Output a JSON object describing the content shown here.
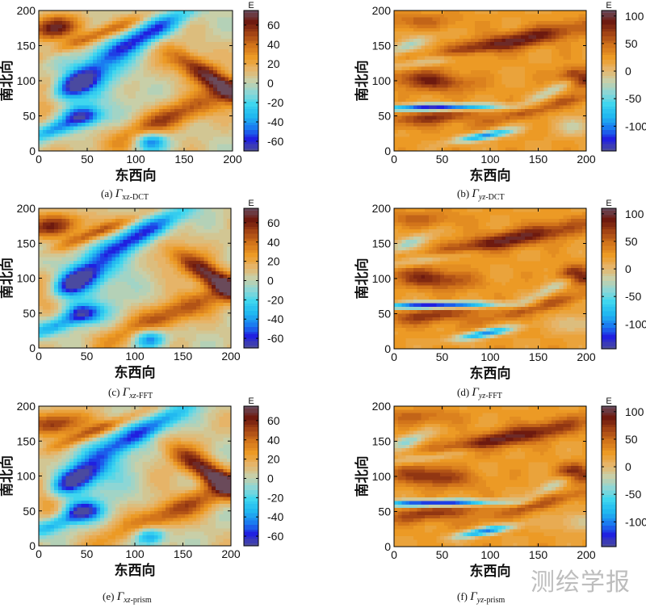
{
  "figure": {
    "watermark": "测绘学报"
  },
  "chart_data": [
    {
      "id": "a",
      "type": "heatmap",
      "field": "xz",
      "caption": {
        "prefix": "(a) ",
        "symbol": "Γ",
        "sub_lead": "xz",
        "sub_tail": "-DCT",
        "sub_italic": false
      },
      "xlabel": "东西向",
      "ylabel": "南北向",
      "xlim": [
        0,
        200
      ],
      "ylim": [
        0,
        200
      ],
      "xticks": [
        0,
        50,
        100,
        150,
        200
      ],
      "yticks": [
        0,
        50,
        100,
        150,
        200
      ],
      "colorbar": {
        "title": "E",
        "range": [
          -70,
          75
        ],
        "ticks": [
          60,
          40,
          20,
          0,
          -20,
          -40,
          -60
        ]
      }
    },
    {
      "id": "b",
      "type": "heatmap",
      "field": "yz",
      "caption": {
        "prefix": "(b) ",
        "symbol": "Γ",
        "sub_lead": "yz",
        "sub_tail": "-DCT",
        "sub_italic": true
      },
      "xlabel": "东西向",
      "ylabel": "南北向",
      "xlim": [
        0,
        200
      ],
      "ylim": [
        0,
        200
      ],
      "xticks": [
        0,
        50,
        100,
        150,
        200
      ],
      "yticks": [
        0,
        50,
        100,
        150,
        200
      ],
      "colorbar": {
        "title": "E",
        "range": [
          -145,
          110
        ],
        "ticks": [
          100,
          50,
          0,
          -50,
          -100
        ]
      }
    },
    {
      "id": "c",
      "type": "heatmap",
      "field": "xz",
      "caption": {
        "prefix": "(c) ",
        "symbol": "Γ",
        "sub_lead": "xz",
        "sub_tail": "-FFT",
        "sub_italic": true
      },
      "xlabel": "东西向",
      "ylabel": "南北向",
      "xlim": [
        0,
        200
      ],
      "ylim": [
        0,
        200
      ],
      "xticks": [
        0,
        50,
        100,
        150,
        200
      ],
      "yticks": [
        0,
        50,
        100,
        150,
        200
      ],
      "colorbar": {
        "title": "E",
        "range": [
          -70,
          75
        ],
        "ticks": [
          60,
          40,
          20,
          0,
          -20,
          -40,
          -60
        ]
      }
    },
    {
      "id": "d",
      "type": "heatmap",
      "field": "yz",
      "caption": {
        "prefix": "(d) ",
        "symbol": "Γ",
        "sub_lead": "yz",
        "sub_tail": "-FFT",
        "sub_italic": true
      },
      "xlabel": "东西向",
      "ylabel": "南北向",
      "xlim": [
        0,
        200
      ],
      "ylim": [
        0,
        200
      ],
      "xticks": [
        0,
        50,
        100,
        150,
        200
      ],
      "yticks": [
        0,
        50,
        100,
        150,
        200
      ],
      "colorbar": {
        "title": "E",
        "range": [
          -145,
          110
        ],
        "ticks": [
          100,
          50,
          0,
          -50,
          -100
        ]
      }
    },
    {
      "id": "e",
      "type": "heatmap",
      "field": "xz",
      "caption": {
        "prefix": "(e) ",
        "symbol": "Γ",
        "sub_lead": "xz",
        "sub_tail": "-prism",
        "sub_italic": true
      },
      "xlabel": "东西向",
      "ylabel": "南北向",
      "xlim": [
        0,
        200
      ],
      "ylim": [
        0,
        200
      ],
      "xticks": [
        0,
        50,
        100,
        150,
        200
      ],
      "yticks": [
        0,
        50,
        100,
        150,
        200
      ],
      "colorbar": {
        "title": "E",
        "range": [
          -70,
          75
        ],
        "ticks": [
          60,
          40,
          20,
          0,
          -20,
          -40,
          -60
        ]
      }
    },
    {
      "id": "f",
      "type": "heatmap",
      "field": "yz",
      "caption": {
        "prefix": "(f) ",
        "symbol": "Γ",
        "sub_lead": "yz",
        "sub_tail": "-prism",
        "sub_italic": true
      },
      "xlabel": "东西向",
      "ylabel": "南北向",
      "xlim": [
        0,
        200
      ],
      "ylim": [
        0,
        200
      ],
      "xticks": [
        0,
        50,
        100,
        150,
        200
      ],
      "yticks": [
        0,
        50,
        100,
        150,
        200
      ],
      "colorbar": {
        "title": "E",
        "range": [
          -145,
          110
        ],
        "ticks": [
          100,
          50,
          0,
          -50,
          -100
        ]
      }
    }
  ],
  "colormap": [
    "#4a4aa0",
    "#2020e0",
    "#1a7cf0",
    "#21b9f0",
    "#3fd6ef",
    "#8dd6d5",
    "#c8cfa8",
    "#e6b468",
    "#ec9a25",
    "#d2741a",
    "#a34414",
    "#6e1a0f",
    "#6a4a5a"
  ]
}
